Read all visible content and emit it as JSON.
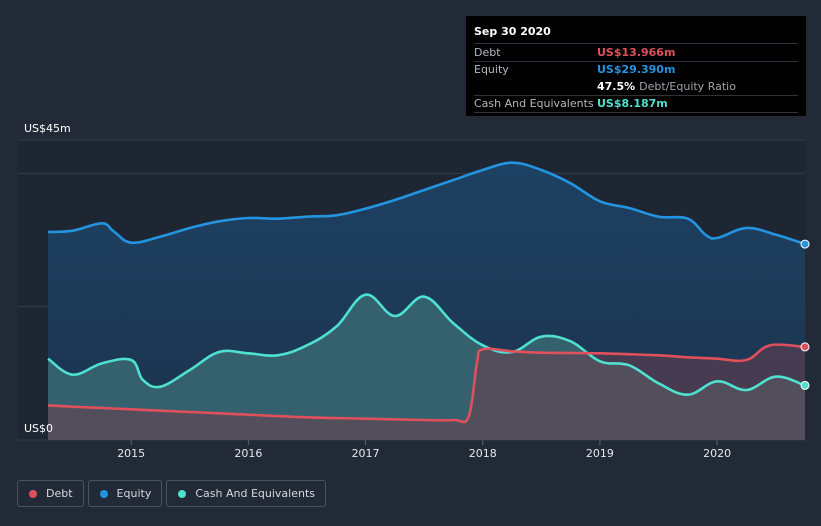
{
  "chart_data": {
    "type": "area",
    "ylabel_top": "US$45m",
    "ylabel_bottom": "US$0",
    "ylim": [
      0,
      45
    ],
    "xlim": [
      2014.29,
      2020.75
    ],
    "x_ticks": [
      "2015",
      "2016",
      "2017",
      "2018",
      "2019",
      "2020"
    ],
    "series": [
      {
        "name": "Debt",
        "color": "#e0505c",
        "points": [
          [
            2014.29,
            5.2
          ],
          [
            2014.5,
            5.0
          ],
          [
            2015.0,
            4.6
          ],
          [
            2015.5,
            4.2
          ],
          [
            2016.0,
            3.8
          ],
          [
            2016.5,
            3.4
          ],
          [
            2017.0,
            3.2
          ],
          [
            2017.5,
            3.0
          ],
          [
            2017.75,
            3.0
          ],
          [
            2017.88,
            3.5
          ],
          [
            2017.95,
            11.5
          ],
          [
            2018.0,
            13.6
          ],
          [
            2018.25,
            13.3
          ],
          [
            2018.5,
            13.1
          ],
          [
            2019.0,
            13.0
          ],
          [
            2019.5,
            12.7
          ],
          [
            2019.75,
            12.4
          ],
          [
            2020.0,
            12.2
          ],
          [
            2020.25,
            12.0
          ],
          [
            2020.45,
            14.2
          ],
          [
            2020.75,
            13.966
          ]
        ]
      },
      {
        "name": "Equity",
        "color": "#2394df",
        "points": [
          [
            2014.29,
            31.2
          ],
          [
            2014.5,
            31.4
          ],
          [
            2014.75,
            32.5
          ],
          [
            2014.85,
            31.3
          ],
          [
            2015.0,
            29.6
          ],
          [
            2015.25,
            30.5
          ],
          [
            2015.5,
            31.8
          ],
          [
            2015.75,
            32.8
          ],
          [
            2016.0,
            33.3
          ],
          [
            2016.25,
            33.2
          ],
          [
            2016.5,
            33.5
          ],
          [
            2016.75,
            33.7
          ],
          [
            2017.0,
            34.7
          ],
          [
            2017.25,
            36.0
          ],
          [
            2017.5,
            37.5
          ],
          [
            2017.75,
            39.0
          ],
          [
            2018.0,
            40.5
          ],
          [
            2018.25,
            41.6
          ],
          [
            2018.5,
            40.5
          ],
          [
            2018.75,
            38.5
          ],
          [
            2019.0,
            35.8
          ],
          [
            2019.25,
            34.8
          ],
          [
            2019.5,
            33.5
          ],
          [
            2019.75,
            33.2
          ],
          [
            2019.9,
            30.8
          ],
          [
            2020.0,
            30.3
          ],
          [
            2020.25,
            31.8
          ],
          [
            2020.5,
            30.8
          ],
          [
            2020.75,
            29.39
          ]
        ]
      },
      {
        "name": "Cash And Equivalents",
        "color": "#4ee0d0",
        "points": [
          [
            2014.29,
            12.2
          ],
          [
            2014.5,
            9.8
          ],
          [
            2014.75,
            11.5
          ],
          [
            2015.0,
            12.0
          ],
          [
            2015.1,
            9.0
          ],
          [
            2015.25,
            8.0
          ],
          [
            2015.5,
            10.5
          ],
          [
            2015.75,
            13.2
          ],
          [
            2016.0,
            13.0
          ],
          [
            2016.25,
            12.7
          ],
          [
            2016.5,
            14.2
          ],
          [
            2016.75,
            17.0
          ],
          [
            2017.0,
            21.8
          ],
          [
            2017.25,
            18.6
          ],
          [
            2017.5,
            21.5
          ],
          [
            2017.75,
            17.5
          ],
          [
            2018.0,
            14.2
          ],
          [
            2018.25,
            13.2
          ],
          [
            2018.5,
            15.5
          ],
          [
            2018.75,
            14.8
          ],
          [
            2019.0,
            11.8
          ],
          [
            2019.25,
            11.2
          ],
          [
            2019.5,
            8.5
          ],
          [
            2019.75,
            6.8
          ],
          [
            2020.0,
            8.8
          ],
          [
            2020.25,
            7.5
          ],
          [
            2020.5,
            9.5
          ],
          [
            2020.75,
            8.187
          ]
        ]
      }
    ]
  },
  "tooltip": {
    "date": "Sep 30 2020",
    "debt_label": "Debt",
    "debt_value": "US$13.966m",
    "equity_label": "Equity",
    "equity_value": "US$29.390m",
    "ratio_value": "47.5%",
    "ratio_label": "Debt/Equity Ratio",
    "cash_label": "Cash And Equivalents",
    "cash_value": "US$8.187m"
  },
  "legend": {
    "debt": "Debt",
    "equity": "Equity",
    "cash": "Cash And Equivalents"
  }
}
